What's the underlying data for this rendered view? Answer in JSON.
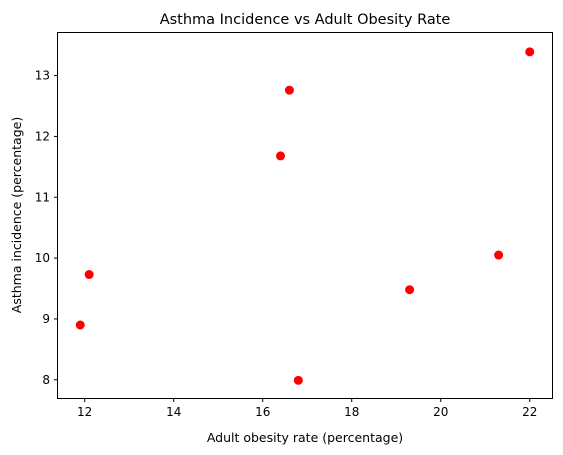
{
  "chart_data": {
    "type": "scatter",
    "title": "Asthma Incidence vs Adult Obesity Rate",
    "xlabel": "Adult obesity rate (percentage)",
    "ylabel": "Asthma incidence (percentage)",
    "xlim": [
      11.4,
      22.5
    ],
    "ylim": [
      7.7,
      13.7
    ],
    "xticks": [
      12,
      14,
      16,
      18,
      20,
      22
    ],
    "yticks": [
      8,
      9,
      10,
      11,
      12,
      13
    ],
    "grid": false,
    "marker_color": "#ff0000",
    "points": [
      {
        "x": 11.9,
        "y": 8.9
      },
      {
        "x": 12.1,
        "y": 9.73
      },
      {
        "x": 16.4,
        "y": 11.68
      },
      {
        "x": 16.6,
        "y": 12.76
      },
      {
        "x": 16.8,
        "y": 7.99
      },
      {
        "x": 19.3,
        "y": 9.48
      },
      {
        "x": 21.3,
        "y": 10.05
      },
      {
        "x": 22.0,
        "y": 13.39
      }
    ]
  }
}
